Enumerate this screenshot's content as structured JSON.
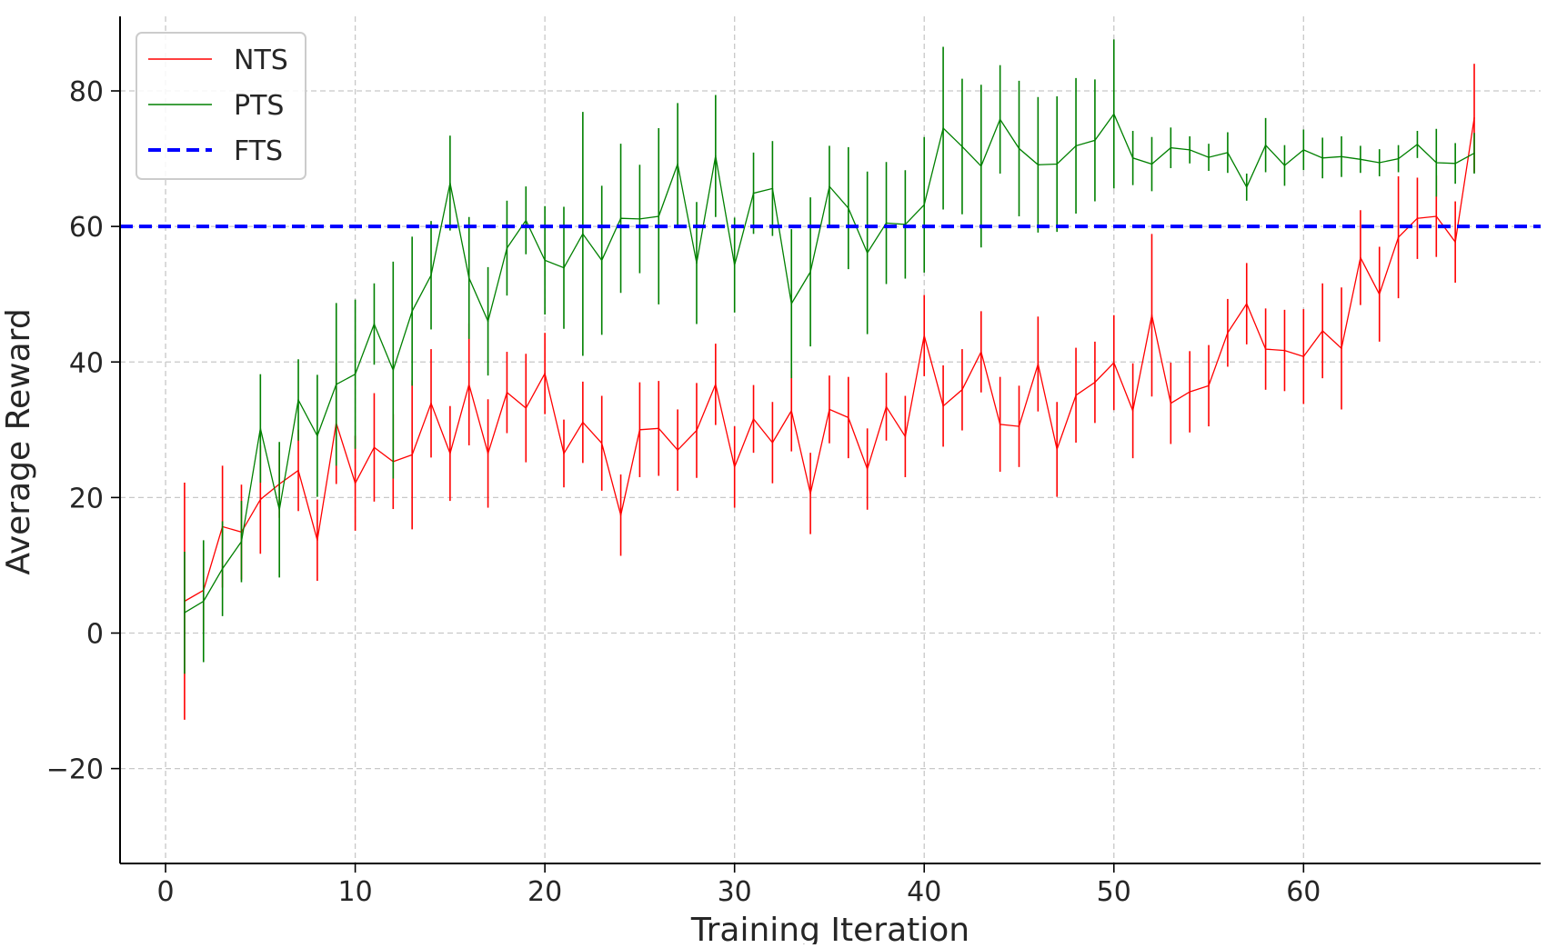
{
  "chart_data": {
    "type": "line",
    "xlabel": "Training Iteration",
    "ylabel": "Average Reward",
    "xlim": [
      -2.4,
      72.5
    ],
    "ylim": [
      -34,
      91
    ],
    "xticks": [
      0,
      10,
      20,
      30,
      40,
      50,
      60
    ],
    "yticks": [
      -20,
      0,
      20,
      40,
      60,
      80
    ],
    "xtick_labels": [
      "0",
      "10",
      "20",
      "30",
      "40",
      "50",
      "60"
    ],
    "ytick_labels": [
      "−20",
      "0",
      "20",
      "40",
      "60",
      "80"
    ],
    "grid": true,
    "legend_position": "top-left",
    "legend": [
      "NTS",
      "PTS",
      "FTS"
    ],
    "series": [
      {
        "name": "NTS",
        "color": "#ff0000",
        "style": "line-with-errorbars",
        "x": [
          1,
          2,
          3,
          4,
          5,
          6,
          7,
          8,
          9,
          10,
          11,
          12,
          13,
          14,
          15,
          16,
          17,
          18,
          19,
          20,
          21,
          22,
          23,
          24,
          25,
          26,
          27,
          28,
          29,
          30,
          31,
          32,
          33,
          34,
          35,
          36,
          37,
          38,
          39,
          40,
          41,
          42,
          43,
          44,
          45,
          46,
          47,
          48,
          49,
          50,
          51,
          52,
          53,
          54,
          55,
          56,
          57,
          58,
          59,
          60,
          61,
          62,
          63,
          64,
          65,
          66,
          67,
          68,
          69
        ],
        "y": [
          4.7,
          6.3,
          15.7,
          14.9,
          19.7,
          22.0,
          24.0,
          13.7,
          31.0,
          22.1,
          27.4,
          25.3,
          26.3,
          33.9,
          26.5,
          36.7,
          26.5,
          35.5,
          33.2,
          38.3,
          26.5,
          31.1,
          28.0,
          17.4,
          30.0,
          30.2,
          27.0,
          29.9,
          36.7,
          24.5,
          31.6,
          28.1,
          32.8,
          20.6,
          33.0,
          31.8,
          24.2,
          33.4,
          29.0,
          43.9,
          33.5,
          35.9,
          41.5,
          30.8,
          30.5,
          39.7,
          27.1,
          35.1,
          37.0,
          39.9,
          32.8,
          46.9,
          33.9,
          35.6,
          36.5,
          44.3,
          48.6,
          41.9,
          41.7,
          40.8,
          44.6,
          42.0,
          55.4,
          50.0,
          58.4,
          61.2,
          61.5,
          57.7,
          76.0
        ],
        "err": [
          17.5,
          6.0,
          9.0,
          7.0,
          8.0,
          5.0,
          6.0,
          6.0,
          9.0,
          7.0,
          8.0,
          7.0,
          11.0,
          8.0,
          7.0,
          9.0,
          8.0,
          6.0,
          8.0,
          6.0,
          5.0,
          6.0,
          7.0,
          6.0,
          7.0,
          7.0,
          6.0,
          7.0,
          6.0,
          6.0,
          5.0,
          6.0,
          6.0,
          6.0,
          5.0,
          6.0,
          6.0,
          5.0,
          6.0,
          6.0,
          6.0,
          6.0,
          6.0,
          7.0,
          6.0,
          7.0,
          7.0,
          7.0,
          6.0,
          7.0,
          7.0,
          12.0,
          6.0,
          6.0,
          6.0,
          5.0,
          6.0,
          6.0,
          6.0,
          7.0,
          7.0,
          9.0,
          7.0,
          7.0,
          9.0,
          6.0,
          6.0,
          6.0,
          8.0
        ]
      },
      {
        "name": "PTS",
        "color": "#008000",
        "style": "line-with-errorbars",
        "x": [
          1,
          2,
          3,
          4,
          5,
          6,
          7,
          8,
          9,
          10,
          11,
          12,
          13,
          14,
          15,
          16,
          17,
          18,
          19,
          20,
          21,
          22,
          23,
          24,
          25,
          26,
          27,
          28,
          29,
          30,
          31,
          32,
          33,
          34,
          35,
          36,
          37,
          38,
          39,
          40,
          41,
          42,
          43,
          44,
          45,
          46,
          47,
          48,
          49,
          50,
          51,
          52,
          53,
          54,
          55,
          56,
          57,
          58,
          59,
          60,
          61,
          62,
          63,
          64,
          65,
          66,
          67,
          68,
          69
        ],
        "y": [
          3.0,
          4.7,
          9.5,
          13.5,
          30.2,
          18.2,
          34.4,
          29.1,
          36.7,
          38.2,
          45.6,
          38.8,
          47.5,
          52.8,
          66.4,
          52.4,
          46.0,
          56.8,
          60.9,
          55.0,
          53.9,
          58.9,
          55.0,
          61.2,
          61.1,
          61.5,
          69.2,
          54.6,
          70.4,
          54.3,
          64.9,
          65.6,
          48.6,
          53.3,
          65.9,
          62.7,
          56.1,
          60.5,
          60.3,
          63.2,
          74.5,
          71.8,
          68.9,
          75.8,
          71.5,
          69.1,
          69.2,
          71.9,
          72.7,
          76.6,
          70.1,
          69.2,
          71.6,
          71.3,
          70.2,
          70.9,
          65.8,
          72.0,
          69.0,
          71.3,
          70.1,
          70.3,
          69.9,
          69.4,
          70.0,
          72.1,
          69.4,
          69.3,
          70.8
        ],
        "err": [
          9.0,
          9.0,
          7.0,
          6.0,
          8.0,
          10.0,
          6.0,
          9.0,
          12.0,
          11.0,
          6.0,
          16.0,
          11.0,
          8.0,
          7.0,
          9.0,
          8.0,
          7.0,
          5.0,
          8.0,
          9.0,
          18.0,
          11.0,
          11.0,
          8.0,
          13.0,
          9.0,
          9.0,
          9.0,
          7.0,
          6.0,
          7.0,
          11.0,
          11.0,
          6.0,
          9.0,
          12.0,
          9.0,
          8.0,
          10.0,
          12.0,
          10.0,
          12.0,
          8.0,
          10.0,
          10.0,
          10.0,
          10.0,
          9.0,
          11.0,
          4.0,
          4.0,
          3.0,
          2.0,
          2.0,
          3.0,
          2.0,
          4.0,
          3.0,
          3.0,
          3.0,
          3.0,
          2.0,
          2.0,
          2.0,
          2.0,
          5.0,
          3.0,
          3.0
        ]
      },
      {
        "name": "FTS",
        "color": "#0000ff",
        "style": "dashed-horizontal",
        "y": 60
      }
    ]
  }
}
